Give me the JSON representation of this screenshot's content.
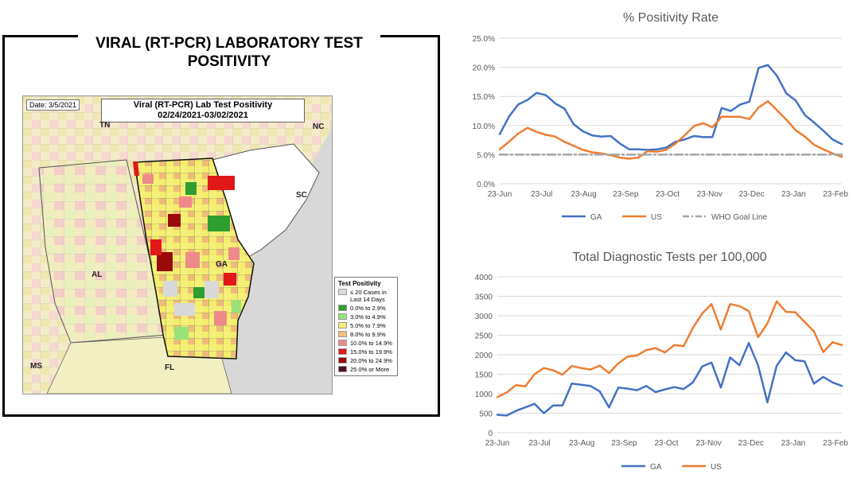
{
  "panel": {
    "title_line1": "VIRAL (RT-PCR) LABORATORY TEST",
    "title_line2": "POSITIVITY",
    "date": "Date: 3/5/2021",
    "map_title_line1": "Viral (RT-PCR) Lab Test Positivity",
    "map_title_line2": "02/24/2021-03/02/2021",
    "states": {
      "tn": "TN",
      "nc": "NC",
      "sc": "SC",
      "ga": "GA",
      "al": "AL",
      "ms": "MS",
      "fl": "FL"
    },
    "legend": {
      "title": "Test Positivity",
      "items": [
        {
          "label": "≤ 20 Cases in Last 14 Days",
          "color": "#d9d9d9"
        },
        {
          "label": "0.0% to 2.9%",
          "color": "#2e9e2e"
        },
        {
          "label": "3.0% to 4.9%",
          "color": "#99e27a"
        },
        {
          "label": "5.0% to 7.9%",
          "color": "#f3f07a"
        },
        {
          "label": "8.0% to 9.9%",
          "color": "#f0c07a"
        },
        {
          "label": "10.0% to 14.9%",
          "color": "#ee8a8a"
        },
        {
          "label": "15.0% to 19.9%",
          "color": "#e01818"
        },
        {
          "label": "20.0% to 24.9%",
          "color": "#9a0a0a"
        },
        {
          "label": "25.0% or More",
          "color": "#4a0f2a"
        }
      ]
    }
  },
  "chart_data": [
    {
      "type": "line",
      "title": "% Positivity Rate",
      "x_ticks": [
        "23-Jun",
        "23-Jul",
        "23-Aug",
        "23-Sep",
        "23-Oct",
        "23-Nov",
        "23-Dec",
        "23-Jan",
        "23-Feb"
      ],
      "y_ticks": [
        "0.0%",
        "5.0%",
        "10.0%",
        "15.0%",
        "20.0%",
        "25.0%"
      ],
      "ylim": [
        0,
        25
      ],
      "grid": true,
      "legend_position": "bottom",
      "series": [
        {
          "name": "GA",
          "color": "#4472c4",
          "values": [
            8.5,
            11.5,
            13.6,
            14.4,
            15.6,
            15.2,
            13.8,
            12.9,
            10.2,
            9.0,
            8.3,
            8.1,
            8.2,
            6.9,
            5.9,
            5.9,
            5.8,
            5.9,
            6.2,
            7.2,
            7.6,
            8.2,
            8.0,
            8.0,
            13.0,
            12.5,
            13.6,
            14.1,
            19.9,
            20.4,
            18.5,
            15.5,
            14.3,
            11.8,
            10.5,
            9.1,
            7.6,
            6.8
          ]
        },
        {
          "name": "US",
          "color": "#ed7d31",
          "values": [
            5.9,
            7.2,
            8.6,
            9.6,
            8.9,
            8.4,
            8.1,
            7.2,
            6.5,
            5.8,
            5.4,
            5.2,
            4.9,
            4.5,
            4.3,
            4.5,
            5.6,
            5.5,
            5.8,
            6.9,
            8.3,
            9.9,
            10.4,
            9.7,
            11.5,
            11.5,
            11.5,
            11.1,
            13.1,
            14.2,
            12.6,
            11.0,
            9.2,
            8.1,
            6.7,
            5.9,
            5.2,
            4.6
          ]
        },
        {
          "name": "WHO Goal Line",
          "color": "#a5a5a5",
          "dashed": true,
          "values": [
            5,
            5,
            5,
            5,
            5,
            5,
            5,
            5,
            5,
            5,
            5,
            5,
            5,
            5,
            5,
            5,
            5,
            5,
            5,
            5,
            5,
            5,
            5,
            5,
            5,
            5,
            5,
            5,
            5,
            5,
            5,
            5,
            5,
            5,
            5,
            5,
            5,
            5
          ]
        }
      ]
    },
    {
      "type": "line",
      "title": "Total Diagnostic Tests per 100,000",
      "x_ticks": [
        "23-Jun",
        "23-Jul",
        "23-Aug",
        "23-Sep",
        "23-Oct",
        "23-Nov",
        "23-Dec",
        "23-Jan",
        "23-Feb"
      ],
      "y_ticks": [
        "0",
        "500",
        "1000",
        "1500",
        "2000",
        "2500",
        "3000",
        "3500",
        "4000"
      ],
      "ylim": [
        0,
        4000
      ],
      "grid": true,
      "legend_position": "bottom",
      "series": [
        {
          "name": "GA",
          "color": "#4472c4",
          "values": [
            460,
            440,
            560,
            650,
            740,
            500,
            700,
            700,
            1260,
            1230,
            1200,
            1060,
            650,
            1160,
            1130,
            1090,
            1200,
            1040,
            1110,
            1170,
            1120,
            1290,
            1700,
            1800,
            1160,
            1930,
            1730,
            2300,
            1730,
            780,
            1720,
            2060,
            1860,
            1830,
            1260,
            1430,
            1290,
            1200
          ]
        },
        {
          "name": "US",
          "color": "#ed7d31",
          "values": [
            910,
            1030,
            1220,
            1190,
            1500,
            1660,
            1600,
            1490,
            1710,
            1660,
            1620,
            1720,
            1530,
            1780,
            1950,
            1980,
            2120,
            2170,
            2060,
            2250,
            2220,
            2690,
            3060,
            3300,
            2650,
            3300,
            3250,
            3120,
            2450,
            2800,
            3370,
            3100,
            3090,
            2840,
            2600,
            2070,
            2320,
            2250
          ]
        }
      ]
    }
  ]
}
